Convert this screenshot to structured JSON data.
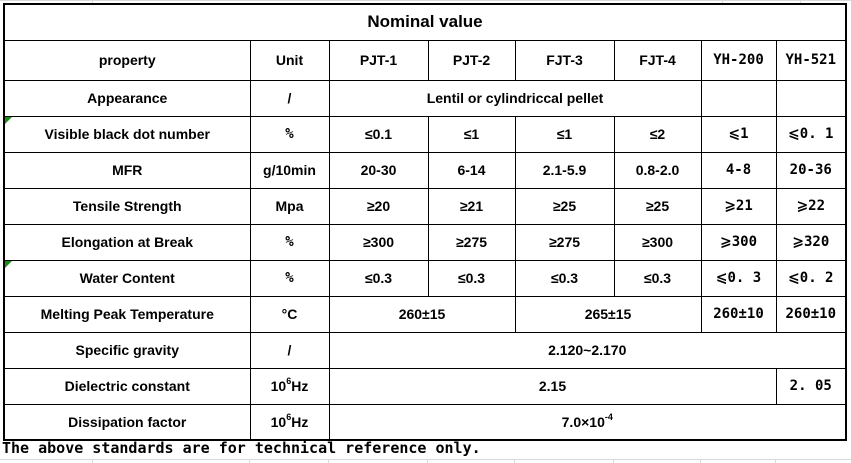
{
  "title": "Nominal value",
  "footer": "The above standards are for technical reference only.",
  "colors": {
    "border": "#000000",
    "flag_marker": "#1d8a1d",
    "gridline": "#d9d9d9",
    "background": "#ffffff"
  },
  "header": {
    "property_label": "property",
    "unit_label": "Unit",
    "products": [
      {
        "t": "PJT-1"
      },
      {
        "t": "PJT-2"
      },
      {
        "t": "FJT-3"
      },
      {
        "t": "FJT-4"
      },
      {
        "t": "YH-200",
        "cn": true
      },
      {
        "t": "YH-521",
        "cn": true
      }
    ]
  },
  "rows": [
    {
      "property": "Appearance",
      "unit": {
        "t": "/"
      },
      "cells": [
        {
          "t": "Lentil or cylindriccal pellet",
          "colspan": 4
        },
        {
          "t": ""
        },
        {
          "t": ""
        }
      ]
    },
    {
      "property": "Visible black dot number",
      "flag": true,
      "unit": {
        "t": "%",
        "cn": true
      },
      "cells": [
        {
          "t": "≤0.1"
        },
        {
          "t": "≤1"
        },
        {
          "t": "≤1"
        },
        {
          "t": "≤2"
        },
        {
          "t": "⩽1",
          "cn": true
        },
        {
          "t": "⩽0. 1",
          "cn": true
        }
      ]
    },
    {
      "property": "MFR",
      "unit": {
        "t": "g/10min"
      },
      "cells": [
        {
          "t": "20-30"
        },
        {
          "t": "6-14"
        },
        {
          "t": "2.1-5.9"
        },
        {
          "t": "0.8-2.0"
        },
        {
          "t": "4-8",
          "cn": true
        },
        {
          "t": "20-36",
          "cn": true
        }
      ]
    },
    {
      "property": "Tensile Strength",
      "unit": {
        "t": "Mpa"
      },
      "cells": [
        {
          "t": "≥20"
        },
        {
          "t": "≥21"
        },
        {
          "t": "≥25"
        },
        {
          "t": "≥25"
        },
        {
          "t": "⩾21",
          "cn": true
        },
        {
          "t": "⩾22",
          "cn": true
        }
      ]
    },
    {
      "property": "Elongation at Break",
      "unit": {
        "t": "%",
        "cn": true
      },
      "cells": [
        {
          "t": "≥300"
        },
        {
          "t": "≥275"
        },
        {
          "t": "≥275"
        },
        {
          "t": "≥300"
        },
        {
          "t": "⩾300",
          "cn": true
        },
        {
          "t": "⩾320",
          "cn": true
        }
      ]
    },
    {
      "property": "Water Content",
      "flag": true,
      "unit": {
        "t": "%",
        "cn": true
      },
      "cells": [
        {
          "t": "≤0.3"
        },
        {
          "t": "≤0.3"
        },
        {
          "t": "≤0.3"
        },
        {
          "t": "≤0.3"
        },
        {
          "t": "⩽0. 3",
          "cn": true
        },
        {
          "t": "⩽0. 2",
          "cn": true
        }
      ]
    },
    {
      "property": "Melting Peak Temperature",
      "unit": {
        "t": "°C"
      },
      "cells": [
        {
          "t": "260±15",
          "colspan": 2
        },
        {
          "t": "265±15",
          "colspan": 2
        },
        {
          "t": "260±10",
          "cn": true
        },
        {
          "t": "260±10",
          "cn": true
        }
      ]
    },
    {
      "property": "Specific gravity",
      "unit": {
        "t": "/"
      },
      "cells": [
        {
          "t": "2.120~2.170",
          "colspan": 6
        }
      ]
    },
    {
      "property": "Dielectric constant",
      "unit": {
        "parts": [
          {
            "t": "10"
          },
          {
            "t": "6",
            "sup": true
          },
          {
            "t": "Hz"
          }
        ]
      },
      "cells": [
        {
          "t": "2.15",
          "colspan": 5
        },
        {
          "t": "2. 05",
          "cn": true
        }
      ]
    },
    {
      "property": "Dissipation factor",
      "unit": {
        "parts": [
          {
            "t": "10"
          },
          {
            "t": "6",
            "sup": true
          },
          {
            "t": "Hz"
          }
        ]
      },
      "cells": [
        {
          "parts": [
            {
              "t": "7.0×10"
            },
            {
              "t": "-4",
              "sup": true
            }
          ],
          "colspan": 6
        }
      ]
    }
  ]
}
